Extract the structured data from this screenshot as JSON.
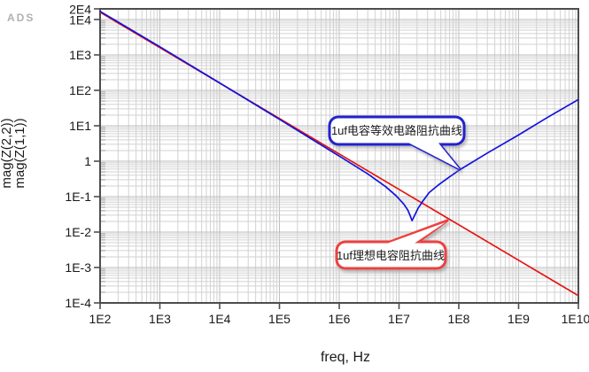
{
  "logo": "ADS",
  "chart_data": {
    "type": "line",
    "title": "",
    "xlabel": "freq, Hz",
    "x_axis": {
      "label": "freq, Hz",
      "scale": "log",
      "min": 100.0,
      "max": 10000000000.0,
      "tick_labels": [
        "1E2",
        "1E3",
        "1E4",
        "1E5",
        "1E6",
        "1E7",
        "1E8",
        "1E9",
        "1E10"
      ]
    },
    "y_axis": {
      "scale": "log",
      "min": 0.0001,
      "max": 20000.0,
      "tick_labels": [
        "2E4",
        "1E4",
        "1E3",
        "1E2",
        "1E1",
        "1",
        "1E-1",
        "1E-2",
        "1E-3",
        "1E-4"
      ],
      "labels": [
        {
          "text": "mag(Z(2,2))",
          "color": "#1212dd"
        },
        {
          "text": "mag(Z(1,1))",
          "color": "#e51212"
        }
      ]
    },
    "grid": true,
    "legend_position": "none",
    "series": [
      {
        "name": "mag(Z(2,2))",
        "color": "#1212dd",
        "description": "1uF capacitor equivalent-circuit impedance (series RLC, resonance dip near 1.6E7 Hz)",
        "points": [
          [
            100.0,
            17000.0
          ],
          [
            1000.0,
            1700.0
          ],
          [
            10000.0,
            162.0
          ],
          [
            100000.0,
            15.2
          ],
          [
            1000000.0,
            1.4
          ],
          [
            3000000.0,
            0.44
          ],
          [
            6000000.0,
            0.19
          ],
          [
            9000000.0,
            0.105
          ],
          [
            12000000.0,
            0.062
          ],
          [
            14000000.0,
            0.042
          ],
          [
            15500000.0,
            0.028
          ],
          [
            16500000.0,
            0.021
          ],
          [
            18000000.0,
            0.028
          ],
          [
            21000000.0,
            0.048
          ],
          [
            25000000.0,
            0.075
          ],
          [
            32000000.0,
            0.13
          ],
          [
            45000000.0,
            0.21
          ],
          [
            70000000.0,
            0.36
          ],
          [
            100000000.0,
            0.55
          ],
          [
            300000000.0,
            1.7
          ],
          [
            1000000000.0,
            5.5
          ],
          [
            3000000000.0,
            17
          ],
          [
            10000000000.0,
            55
          ]
        ]
      },
      {
        "name": "mag(Z(1,1))",
        "color": "#e51212",
        "description": "ideal 1uF capacitor impedance (straight -1 slope line)",
        "points": [
          [
            100.0,
            16000.0
          ],
          [
            1000.0,
            1600.0
          ],
          [
            10000.0,
            160.0
          ],
          [
            100000.0,
            16
          ],
          [
            1000000.0,
            1.6
          ],
          [
            10000000.0,
            0.16
          ],
          [
            100000000.0,
            0.016
          ],
          [
            1000000000.0,
            0.0016
          ],
          [
            10000000000.0,
            0.00016
          ]
        ]
      }
    ],
    "annotations": [
      {
        "text": "1uf电容等效电路阻抗曲线",
        "color": "#2424cc",
        "points_to": "equivalent-circuit-curve"
      },
      {
        "text": "1uf理想电容阻抗曲线",
        "color": "#ee4040",
        "points_to": "ideal-capacitor-curve"
      }
    ]
  }
}
